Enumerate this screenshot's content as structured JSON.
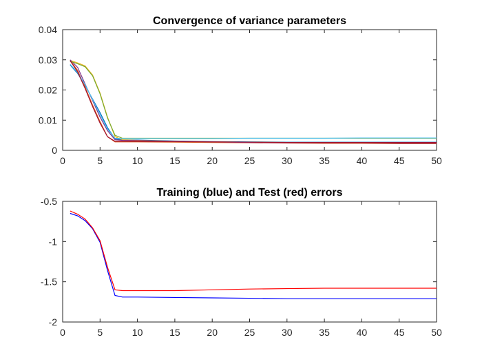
{
  "chart_data": [
    {
      "type": "line",
      "title": "Convergence of variance parameters",
      "xlabel": "",
      "ylabel": "",
      "xlim": [
        0,
        50
      ],
      "ylim": [
        0,
        0.04
      ],
      "xticks": [
        0,
        5,
        10,
        15,
        20,
        25,
        30,
        35,
        40,
        45,
        50
      ],
      "yticks": [
        0,
        0.01,
        0.02,
        0.03,
        0.04
      ],
      "yticklabels": [
        "0",
        "0.01",
        "0.02",
        "0.03",
        "0.04"
      ],
      "grid": false,
      "series": [
        {
          "color": "#0072BD",
          "x": [
            1,
            2,
            3,
            4,
            5,
            6,
            7,
            8,
            10,
            15,
            20,
            25,
            30,
            35,
            40,
            45,
            50
          ],
          "values": [
            0.0283,
            0.0255,
            0.0215,
            0.017,
            0.0125,
            0.0075,
            0.0038,
            0.0035,
            0.0034,
            0.0031,
            0.0029,
            0.0028,
            0.0027,
            0.0027,
            0.0027,
            0.0027,
            0.0027
          ]
        },
        {
          "color": "#D95319",
          "x": [
            1,
            2,
            3,
            4,
            5,
            6,
            7,
            8,
            10,
            15,
            20,
            25,
            30,
            35,
            40,
            45,
            50
          ],
          "values": [
            0.0298,
            0.0265,
            0.021,
            0.015,
            0.0095,
            0.0045,
            0.0028,
            0.0028,
            0.0028,
            0.0027,
            0.0026,
            0.0025,
            0.0024,
            0.0023,
            0.0023,
            0.0022,
            0.0022
          ]
        },
        {
          "color": "#EDB120",
          "x": [
            1,
            2,
            3,
            4,
            5,
            6,
            7,
            8,
            10,
            15,
            20,
            25,
            30,
            35,
            40,
            45,
            50
          ],
          "values": [
            0.0298,
            0.029,
            0.028,
            0.025,
            0.019,
            0.011,
            0.0045,
            0.0035,
            0.0033,
            0.003,
            0.0028,
            0.0027,
            0.0026,
            0.0026,
            0.0026,
            0.0026,
            0.0026
          ]
        },
        {
          "color": "#7E2F8E",
          "x": [
            1,
            2,
            3,
            4,
            5,
            6,
            7,
            8,
            10,
            15,
            20,
            25,
            30,
            35,
            40,
            45,
            50
          ],
          "values": [
            0.03,
            0.0275,
            0.022,
            0.0165,
            0.011,
            0.0065,
            0.0035,
            0.0033,
            0.0032,
            0.003,
            0.0028,
            0.0026,
            0.0025,
            0.0025,
            0.0025,
            0.0024,
            0.0024
          ]
        },
        {
          "color": "#77AC30",
          "x": [
            1,
            2,
            3,
            4,
            5,
            6,
            7,
            8,
            10,
            15,
            20,
            25,
            30,
            35,
            40,
            45,
            50
          ],
          "values": [
            0.0295,
            0.0287,
            0.0277,
            0.0247,
            0.0187,
            0.0107,
            0.005,
            0.004,
            0.004,
            0.004,
            0.004,
            0.004,
            0.004,
            0.004,
            0.004,
            0.004,
            0.004
          ]
        },
        {
          "color": "#4DBEEE",
          "x": [
            1,
            2,
            3,
            4,
            5,
            6,
            7,
            8,
            10,
            15,
            20,
            25,
            30,
            35,
            40,
            45,
            50
          ],
          "values": [
            0.0285,
            0.0258,
            0.0218,
            0.0168,
            0.0118,
            0.007,
            0.004,
            0.0039,
            0.0039,
            0.0039,
            0.0039,
            0.004,
            0.004,
            0.004,
            0.0041,
            0.0041,
            0.0041
          ]
        },
        {
          "color": "#A2142F",
          "x": [
            1,
            2,
            3,
            4,
            5,
            6,
            7,
            8,
            10,
            15,
            20,
            25,
            30,
            35,
            40,
            45,
            50
          ],
          "values": [
            0.0297,
            0.026,
            0.0205,
            0.0145,
            0.009,
            0.0045,
            0.003,
            0.003,
            0.003,
            0.0029,
            0.0028,
            0.0027,
            0.0026,
            0.0026,
            0.0026,
            0.0026,
            0.0026
          ]
        }
      ]
    },
    {
      "type": "line",
      "title": "Training (blue) and Test (red) errors",
      "xlabel": "",
      "ylabel": "",
      "xlim": [
        0,
        50
      ],
      "ylim": [
        -2,
        -0.5
      ],
      "xticks": [
        0,
        5,
        10,
        15,
        20,
        25,
        30,
        35,
        40,
        45,
        50
      ],
      "yticks": [
        -2,
        -1.5,
        -1,
        -0.5
      ],
      "yticklabels": [
        "-2",
        "-1.5",
        "-1",
        "-0.5"
      ],
      "grid": false,
      "series": [
        {
          "color": "#0000FF",
          "x": [
            1,
            2,
            3,
            4,
            5,
            6,
            7,
            8,
            10,
            15,
            20,
            25,
            30,
            35,
            40,
            45,
            50
          ],
          "values": [
            -0.65,
            -0.68,
            -0.74,
            -0.84,
            -1.01,
            -1.36,
            -1.67,
            -1.69,
            -1.69,
            -1.695,
            -1.7,
            -1.705,
            -1.71,
            -1.71,
            -1.71,
            -1.71,
            -1.71
          ]
        },
        {
          "color": "#FF0000",
          "x": [
            1,
            2,
            3,
            4,
            5,
            6,
            7,
            8,
            10,
            15,
            20,
            25,
            30,
            35,
            40,
            45,
            50
          ],
          "values": [
            -0.62,
            -0.66,
            -0.72,
            -0.83,
            -0.99,
            -1.32,
            -1.6,
            -1.61,
            -1.61,
            -1.61,
            -1.6,
            -1.59,
            -1.585,
            -1.58,
            -1.58,
            -1.58,
            -1.58
          ]
        }
      ]
    }
  ]
}
